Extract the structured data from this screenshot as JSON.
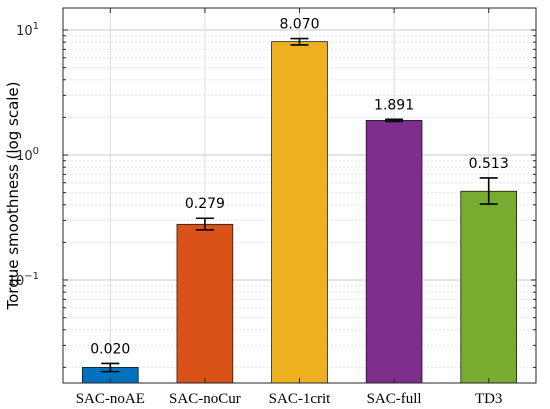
{
  "chart_data": {
    "type": "bar",
    "title": "",
    "xlabel": "",
    "ylabel": "Torque smoothness (log scale)",
    "y_scale": "log",
    "ylim": [
      0.015,
      15
    ],
    "grid": true,
    "legend": "none",
    "categories": [
      "SAC-noAE",
      "SAC-noCur",
      "SAC-1crit",
      "SAC-full",
      "TD3"
    ],
    "values": [
      0.02,
      0.279,
      8.07,
      1.891,
      0.513
    ],
    "value_labels": [
      "0.020",
      "0.279",
      "8.070",
      "1.891",
      "0.513"
    ],
    "error_low": [
      0.0185,
      0.252,
      7.6,
      1.855,
      0.405
    ],
    "error_high": [
      0.0215,
      0.312,
      8.55,
      1.93,
      0.655
    ],
    "colors": [
      "#0072BD",
      "#D95319",
      "#EDB120",
      "#7E2F8E",
      "#77AC30"
    ],
    "y_ticks": [
      {
        "value": 10,
        "base": "10",
        "exp": "1"
      },
      {
        "value": 1,
        "base": "10",
        "exp": "0"
      },
      {
        "value": 0.1,
        "base": "10",
        "exp": "−1"
      }
    ]
  }
}
